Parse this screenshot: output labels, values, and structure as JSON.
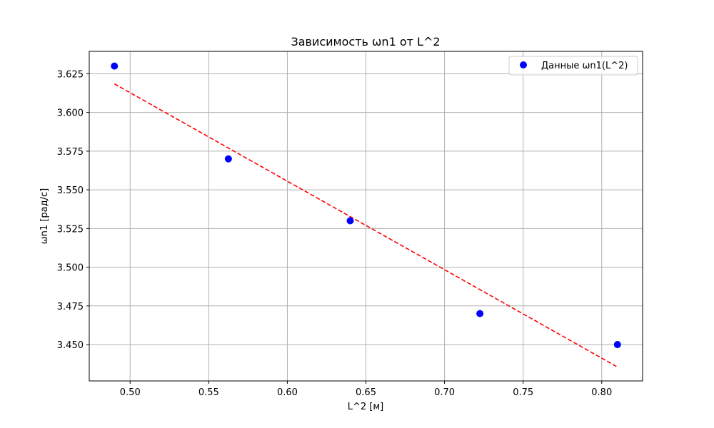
{
  "chart_data": {
    "type": "scatter",
    "title": "Зависимость ωn1 от L^2",
    "xlabel": "L^2 [м]",
    "ylabel": "ωn1 [рад/с]",
    "xlim": [
      0.474,
      0.826
    ],
    "ylim": [
      3.4265,
      3.6395
    ],
    "xticks": [
      0.5,
      0.55,
      0.6,
      0.65,
      0.7,
      0.75,
      0.8
    ],
    "xtick_labels": [
      "0.50",
      "0.55",
      "0.60",
      "0.65",
      "0.70",
      "0.75",
      "0.80"
    ],
    "yticks": [
      3.45,
      3.475,
      3.5,
      3.525,
      3.55,
      3.575,
      3.6,
      3.625
    ],
    "ytick_labels": [
      "3.450",
      "3.475",
      "3.500",
      "3.525",
      "3.550",
      "3.575",
      "3.600",
      "3.625"
    ],
    "grid": true,
    "legend_position": "top-right",
    "series": [
      {
        "name": "Данные ωn1(L^2)",
        "kind": "scatter",
        "color": "#0000ff",
        "x": [
          0.49,
          0.5625,
          0.64,
          0.7225,
          0.81
        ],
        "y": [
          3.63,
          3.57,
          3.53,
          3.47,
          3.45
        ]
      },
      {
        "kind": "line",
        "style": "dashed",
        "color": "#ff0000",
        "x": [
          0.49,
          0.81
        ],
        "y": [
          3.6185,
          3.4355
        ]
      }
    ]
  }
}
